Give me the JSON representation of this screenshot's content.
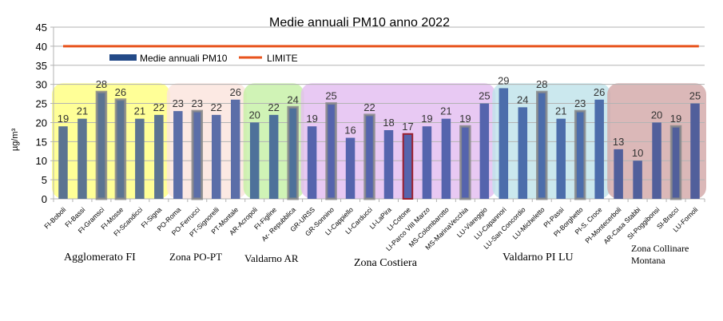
{
  "chart_data": {
    "type": "bar",
    "title": "Medie annuali PM10 anno 2022",
    "ylabel": "µg/m³",
    "ylim": [
      0,
      45
    ],
    "yticks": [
      0,
      5,
      10,
      15,
      20,
      25,
      30,
      35,
      40,
      45
    ],
    "grid": true,
    "legend": [
      "Medie annuali PM10",
      "LIMITE"
    ],
    "limit": 40,
    "categories": [
      "FI-Boboli",
      "FI-Bassi",
      "FI-Gramsci",
      "FI-Mosse",
      "FI-Scandicci",
      "FI-Signa",
      "PO-Roma",
      "PO-Ferrucci",
      "PT-Signorelli",
      "PT-Montale",
      "AR-Acropoli",
      "FI-Figline",
      "Ar- Repubblica",
      "GR-URSS",
      "GR-Sonnino",
      "LI-Cappiello",
      "LI-Carducci",
      "LI-LaPira",
      "LI-Cotone",
      "LI-Parco VIII Marzo",
      "MS-Colombarotto",
      "MS-MarinaVecchia",
      "LU-Viareggio",
      "LU-Capannori",
      "LU-San Concordio",
      "LU-Micheletto",
      "PI-Passi",
      "PI-Borghetto",
      "PI-S. Croce",
      "PI-Montecerboli",
      "AR-Casa Stabbi",
      "SI-Poggibonsi",
      "SI-Bracci",
      "LU-Fornoli"
    ],
    "values": [
      19,
      21,
      28,
      26,
      21,
      22,
      23,
      23,
      22,
      26,
      20,
      22,
      24,
      19,
      25,
      16,
      22,
      18,
      17,
      19,
      21,
      19,
      25,
      29,
      24,
      28,
      21,
      23,
      26,
      13,
      10,
      20,
      19,
      25
    ],
    "zones": [
      {
        "name": "Agglomerato FI",
        "start": 0,
        "end": 5,
        "color": "#ffff80"
      },
      {
        "name": "Zona PO-PT",
        "start": 6,
        "end": 9,
        "color": "#fbe4dd"
      },
      {
        "name": "Valdarno AR",
        "start": 10,
        "end": 12,
        "color": "#c6f0a6"
      },
      {
        "name": "Zona Costiera",
        "start": 13,
        "end": 22,
        "color": "#e3bdf0"
      },
      {
        "name": "Valdarno PI LU",
        "start": 23,
        "end": 28,
        "color": "#bfe3ea"
      },
      {
        "name": "Zona Collinare Montana",
        "start": 29,
        "end": 33,
        "color": "#d3a8a8"
      }
    ]
  }
}
